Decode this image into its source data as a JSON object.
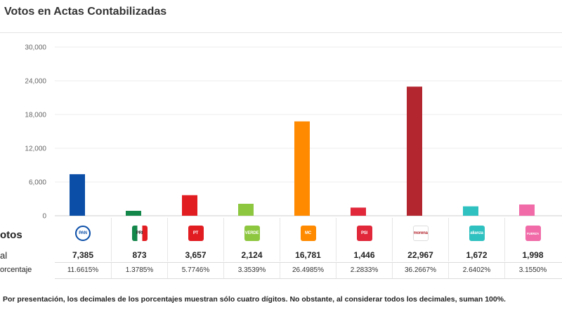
{
  "header": {
    "title": "Votos en Actas Contabilizadas"
  },
  "table": {
    "section_label": "otos",
    "total_label": "al",
    "percent_label": "orcentaje"
  },
  "footnote": "Por presentación, los decimales de los porcentajes muestran sólo cuatro dígitos. No obstante, al considerar todos los decimales, suman 100%.",
  "parties": [
    {
      "id": "pan",
      "logo_text": "PAN",
      "color": "#0a4ea8",
      "votes": "7,385",
      "percent": "11.6615%"
    },
    {
      "id": "pri",
      "logo_text": "PRI",
      "color": "#13864a",
      "votes": "873",
      "percent": "1.3785%"
    },
    {
      "id": "pt",
      "logo_text": "PT",
      "color": "#e11d22",
      "votes": "3,657",
      "percent": "5.7746%"
    },
    {
      "id": "verde",
      "logo_text": "VERDE",
      "color": "#8dc63f",
      "votes": "2,124",
      "percent": "3.3539%"
    },
    {
      "id": "mc",
      "logo_text": "MC",
      "color": "#ff8a00",
      "votes": "16,781",
      "percent": "26.4985%"
    },
    {
      "id": "psi",
      "logo_text": "PSI",
      "color": "#e0283a",
      "votes": "1,446",
      "percent": "2.2833%"
    },
    {
      "id": "morena",
      "logo_text": "morena",
      "color": "#b3262f",
      "votes": "22,967",
      "percent": "36.2667%"
    },
    {
      "id": "alianza",
      "logo_text": "alianza",
      "color": "#2fc0c0",
      "votes": "1,672",
      "percent": "2.6402%"
    },
    {
      "id": "fuerza",
      "logo_text": "FUERZA",
      "color": "#f06ba8",
      "votes": "1,998",
      "percent": "3.1550%"
    }
  ],
  "chart_data": {
    "type": "bar",
    "title": "Votos en Actas Contabilizadas",
    "categories": [
      "PAN",
      "PRI",
      "PT",
      "VERDE",
      "MC",
      "PSI",
      "morena",
      "alianza",
      "FUERZA"
    ],
    "values": [
      7385,
      873,
      3657,
      2124,
      16781,
      1446,
      22967,
      1672,
      1998
    ],
    "colors": [
      "#0a4ea8",
      "#13864a",
      "#e11d22",
      "#8dc63f",
      "#ff8a00",
      "#e0283a",
      "#b3262f",
      "#2fc0c0",
      "#f06ba8"
    ],
    "ylim": [
      0,
      30000
    ],
    "yticks": [
      0,
      6000,
      12000,
      18000,
      24000,
      30000
    ],
    "ytick_labels": [
      "0",
      "6,000",
      "12,000",
      "18,000",
      "24,000",
      "30,000"
    ],
    "grid": true,
    "legend": "none"
  }
}
